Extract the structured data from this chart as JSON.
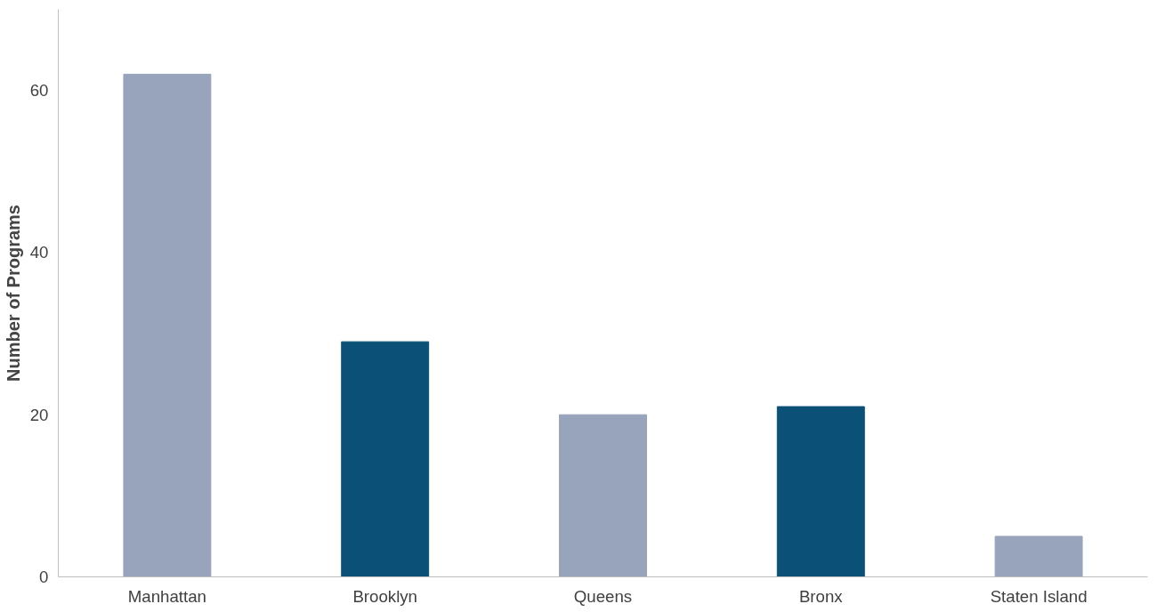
{
  "chart_data": {
    "type": "bar",
    "ylabel": "Number of Programs",
    "categories": [
      "Manhattan",
      "Brooklyn",
      "Queens",
      "Bronx",
      "Staten Island"
    ],
    "values": [
      62,
      29,
      20,
      21,
      5
    ],
    "colors": [
      "#98a4bb",
      "#0b5077",
      "#98a4bb",
      "#0b5077",
      "#98a4bb"
    ],
    "ylim": [
      0,
      70
    ],
    "yticks": [
      0,
      20,
      40,
      60
    ],
    "grid": false
  }
}
